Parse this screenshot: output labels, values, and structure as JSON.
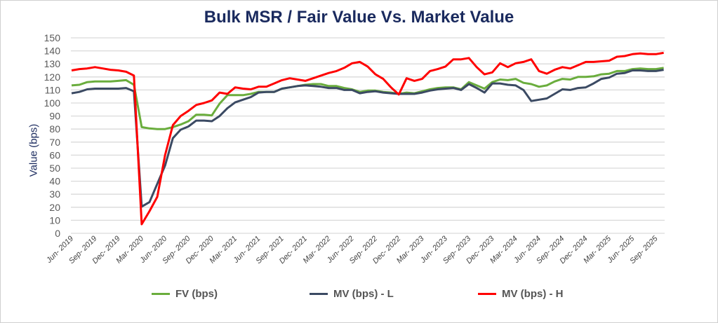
{
  "chart_data": {
    "type": "line",
    "title": "Bulk MSR / Fair Value Vs. Market Value",
    "ylabel": "Value (bps)",
    "xlabel": "",
    "ylim": [
      0,
      150
    ],
    "yticks": [
      "0",
      "10",
      "20",
      "30",
      "40",
      "50",
      "60",
      "70",
      "80",
      "90",
      "100",
      "110",
      "120",
      "130",
      "140",
      "150"
    ],
    "grid": true,
    "legend_position": "bottom",
    "x_start": "Jun-2019",
    "x_frequency": "monthly",
    "x_tick_labels": [
      "Jun- 2019",
      "Sep- 2019",
      "Dec- 2019",
      "Mar- 2020",
      "Jun- 2020",
      "Sep- 2020",
      "Dec- 2020",
      "Mar- 2021",
      "Jun- 2021",
      "Sep- 2021",
      "Dec- 2021",
      "Mar- 2022",
      "Jun- 2022",
      "Sep- 2022",
      "Dec- 2022",
      "Mar- 2023",
      "Jun- 2023",
      "Sep- 2023",
      "Dec- 2023",
      "Mar- 2024",
      "Jun- 2024",
      "Sep- 2024",
      "Dec- 2024",
      "Mar- 2025",
      "Jun- 2025",
      "Sep- 2025"
    ],
    "series": [
      {
        "name": "FV (bps)",
        "color": "#6aad3d",
        "values": [
          113.5,
          114,
          116,
          116.5,
          116.5,
          116.5,
          117,
          117.5,
          114,
          81.5,
          80.5,
          80,
          80,
          81.5,
          83.5,
          86,
          91,
          91,
          90.5,
          99.5,
          106,
          106,
          106,
          107,
          108.5,
          108.5,
          108.5,
          111,
          112,
          113,
          114,
          114.5,
          114.5,
          113,
          113,
          111.5,
          110.5,
          108.5,
          109.5,
          109.5,
          108.5,
          108,
          107,
          108,
          107.5,
          109,
          110.5,
          111.5,
          112,
          112,
          110.5,
          116,
          113.5,
          111,
          116,
          118,
          117.5,
          118.5,
          115.5,
          114.5,
          112.5,
          113.5,
          116.5,
          118.5,
          118,
          120,
          120,
          120.5,
          122,
          122.5,
          124.5,
          124.5,
          126,
          126.5,
          126,
          126,
          127
        ]
      },
      {
        "name": "MV (bps) - L",
        "color": "#3b4a63",
        "values": [
          107.5,
          108.5,
          110.5,
          111,
          111,
          111,
          111,
          111.5,
          109,
          20.5,
          24,
          38,
          52,
          73,
          79.5,
          82,
          86.5,
          86.5,
          86,
          90,
          96,
          100.5,
          102.5,
          104.5,
          108,
          108.5,
          108.5,
          111,
          112,
          113,
          113.5,
          113,
          112.5,
          111.5,
          111.5,
          110,
          110,
          107.5,
          108.5,
          109,
          108,
          107.5,
          107,
          107,
          107,
          108,
          109.5,
          110.5,
          111,
          111.5,
          110,
          114.5,
          111.5,
          108,
          115,
          115,
          114,
          113.5,
          110,
          101.5,
          102.5,
          103.5,
          107,
          110.5,
          110,
          111.5,
          112,
          115,
          118.5,
          119.5,
          122.5,
          123,
          125,
          125,
          124.5,
          124.5,
          125.5
        ]
      },
      {
        "name": "MV (bps) - H",
        "color": "#ff0000",
        "values": [
          125,
          126,
          126.5,
          127.5,
          126.5,
          125.5,
          125,
          124,
          121,
          7,
          17,
          28,
          60,
          83,
          90,
          94,
          98.5,
          100,
          102,
          108,
          107,
          112,
          111,
          110.5,
          112.5,
          112.5,
          115,
          117.5,
          119,
          118,
          117,
          119,
          121,
          123,
          124.5,
          127,
          130.5,
          131.5,
          128,
          122,
          118.5,
          112,
          106.5,
          119,
          117,
          118.5,
          124.5,
          126,
          128,
          133.5,
          133.5,
          134.5,
          127.5,
          122,
          123.5,
          130.5,
          127.5,
          130.5,
          131.5,
          133.5,
          124.5,
          122.5,
          125.5,
          127.5,
          126.5,
          129,
          131.5,
          131.5,
          132,
          132.5,
          135.5,
          136,
          137.5,
          138,
          137.5,
          137.5,
          138.5
        ]
      }
    ]
  }
}
